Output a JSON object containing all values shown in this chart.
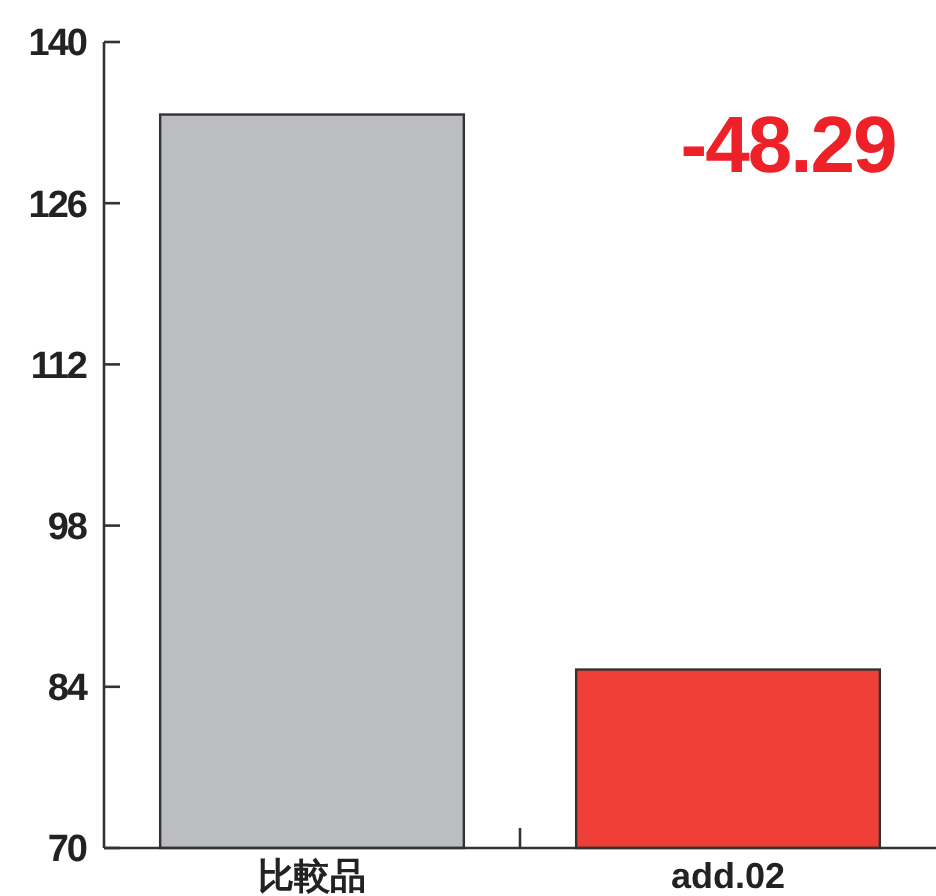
{
  "chart_data": {
    "type": "bar",
    "categories": [
      "比較品",
      "add.02"
    ],
    "values": [
      133.7,
      85.5
    ],
    "colors": [
      "#bcbdc1",
      "#ef3e36"
    ],
    "ylim": [
      70,
      140
    ],
    "yticks": [
      70,
      84,
      98,
      112,
      126,
      140
    ],
    "grid": false,
    "annotations": [
      "-48.29"
    ]
  }
}
